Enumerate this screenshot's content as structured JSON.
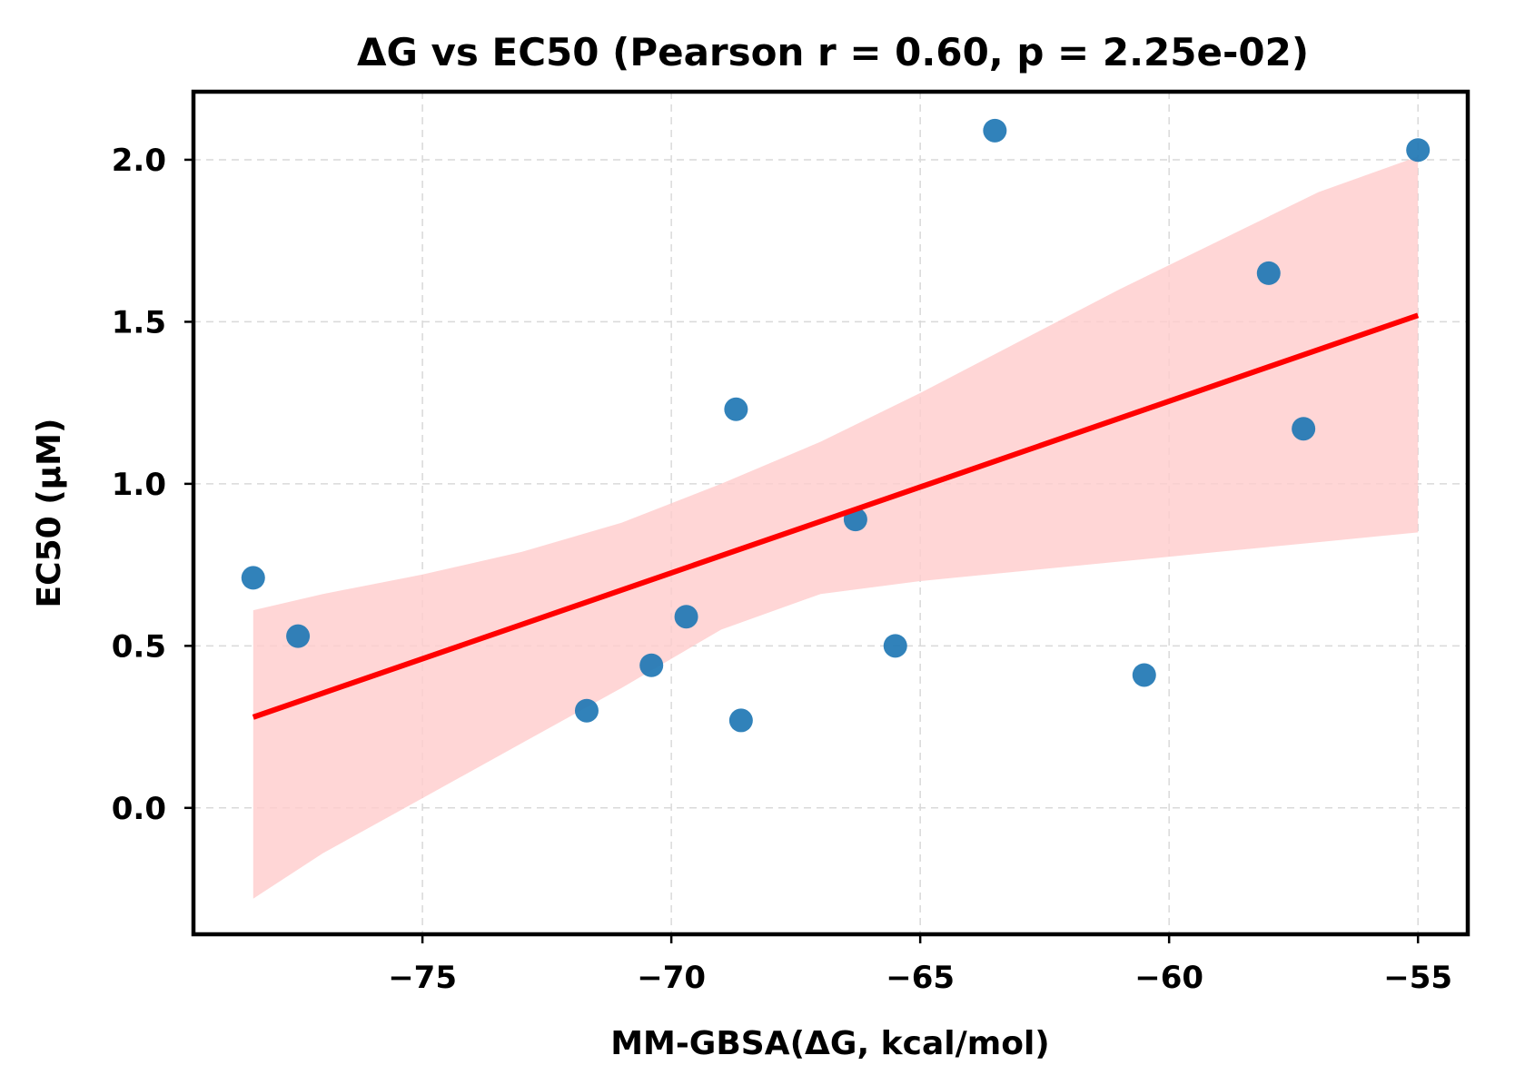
{
  "chart_data": {
    "type": "scatter",
    "title": "ΔG vs EC50 (Pearson r = 0.60, p = 2.25e-02)",
    "xlabel": "MM-GBSA(ΔG, kcal/mol)",
    "ylabel": "EC50 (μM)",
    "xlim": [
      -79.6,
      -54.0
    ],
    "ylim": [
      -0.39,
      2.21
    ],
    "xticks": [
      -75,
      -70,
      -65,
      -60,
      -55
    ],
    "xtick_labels": [
      "−75",
      "−70",
      "−65",
      "−60",
      "−55"
    ],
    "yticks": [
      0.0,
      0.5,
      1.0,
      1.5,
      2.0
    ],
    "ytick_labels": [
      "0.0",
      "0.5",
      "1.0",
      "1.5",
      "2.0"
    ],
    "grid": true,
    "point_color": "#1f77b4",
    "line_color": "#ff0000",
    "band_color": "#ffcccc",
    "points": [
      {
        "x": -78.4,
        "y": 0.71
      },
      {
        "x": -77.5,
        "y": 0.53
      },
      {
        "x": -71.7,
        "y": 0.3
      },
      {
        "x": -70.4,
        "y": 0.44
      },
      {
        "x": -69.7,
        "y": 0.59
      },
      {
        "x": -68.7,
        "y": 1.23
      },
      {
        "x": -68.6,
        "y": 0.27
      },
      {
        "x": -66.3,
        "y": 0.89
      },
      {
        "x": -65.5,
        "y": 0.5
      },
      {
        "x": -63.5,
        "y": 2.09
      },
      {
        "x": -60.5,
        "y": 0.41
      },
      {
        "x": -58.0,
        "y": 1.65
      },
      {
        "x": -57.3,
        "y": 1.17
      },
      {
        "x": -55.0,
        "y": 2.03
      }
    ],
    "regression": {
      "x": [
        -78.4,
        -55.0
      ],
      "y": [
        0.28,
        1.52
      ]
    },
    "confidence_band": {
      "x": [
        -78.4,
        -77.0,
        -75.0,
        -73.0,
        -71.0,
        -69.0,
        -67.0,
        -65.0,
        -63.0,
        -61.0,
        -59.0,
        -57.0,
        -55.0
      ],
      "upper": [
        0.61,
        0.66,
        0.72,
        0.79,
        0.88,
        1.0,
        1.13,
        1.28,
        1.44,
        1.6,
        1.75,
        1.9,
        2.01
      ],
      "lower": [
        -0.28,
        -0.14,
        0.03,
        0.2,
        0.37,
        0.55,
        0.66,
        0.7,
        0.73,
        0.76,
        0.79,
        0.82,
        0.85
      ]
    }
  }
}
